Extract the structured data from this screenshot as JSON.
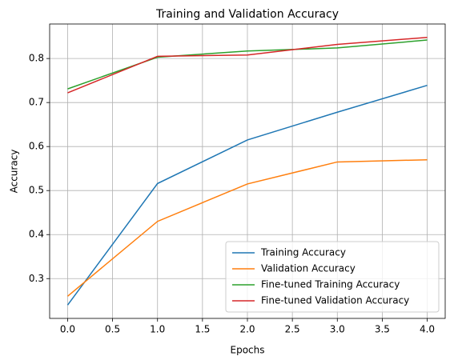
{
  "chart_data": {
    "type": "line",
    "title": "Training and Validation Accuracy",
    "x_label": "Epochs",
    "y_label": "Accuracy",
    "x": [
      0,
      1,
      2,
      3,
      4
    ],
    "series": [
      {
        "name": "Training Accuracy",
        "color": "#1f77b4",
        "values": [
          0.24,
          0.516,
          0.615,
          0.678,
          0.739
        ]
      },
      {
        "name": "Validation Accuracy",
        "color": "#ff7f0e",
        "values": [
          0.26,
          0.43,
          0.515,
          0.565,
          0.57
        ]
      },
      {
        "name": "Fine-tuned Training Accuracy",
        "color": "#2ca02c",
        "values": [
          0.731,
          0.803,
          0.817,
          0.824,
          0.842
        ]
      },
      {
        "name": "Fine-tuned Validation Accuracy",
        "color": "#d62728",
        "values": [
          0.722,
          0.805,
          0.808,
          0.832,
          0.848
        ]
      }
    ],
    "xlim": [
      -0.2,
      4.2
    ],
    "xticks": [
      {
        "value": 0,
        "label": "0.0"
      },
      0.5,
      {
        "value": 1,
        "label": "1.0"
      },
      1.5,
      {
        "value": 2,
        "label": "2.0"
      },
      2.5,
      {
        "value": 3,
        "label": "3.0"
      },
      3.5,
      {
        "value": 4,
        "label": "4.0"
      }
    ],
    "ylim": [
      0.2096,
      0.8784
    ],
    "yticks": [
      0.3,
      0.4,
      0.5,
      0.6,
      0.7,
      0.8
    ],
    "grid": true,
    "legend": "lower right"
  }
}
